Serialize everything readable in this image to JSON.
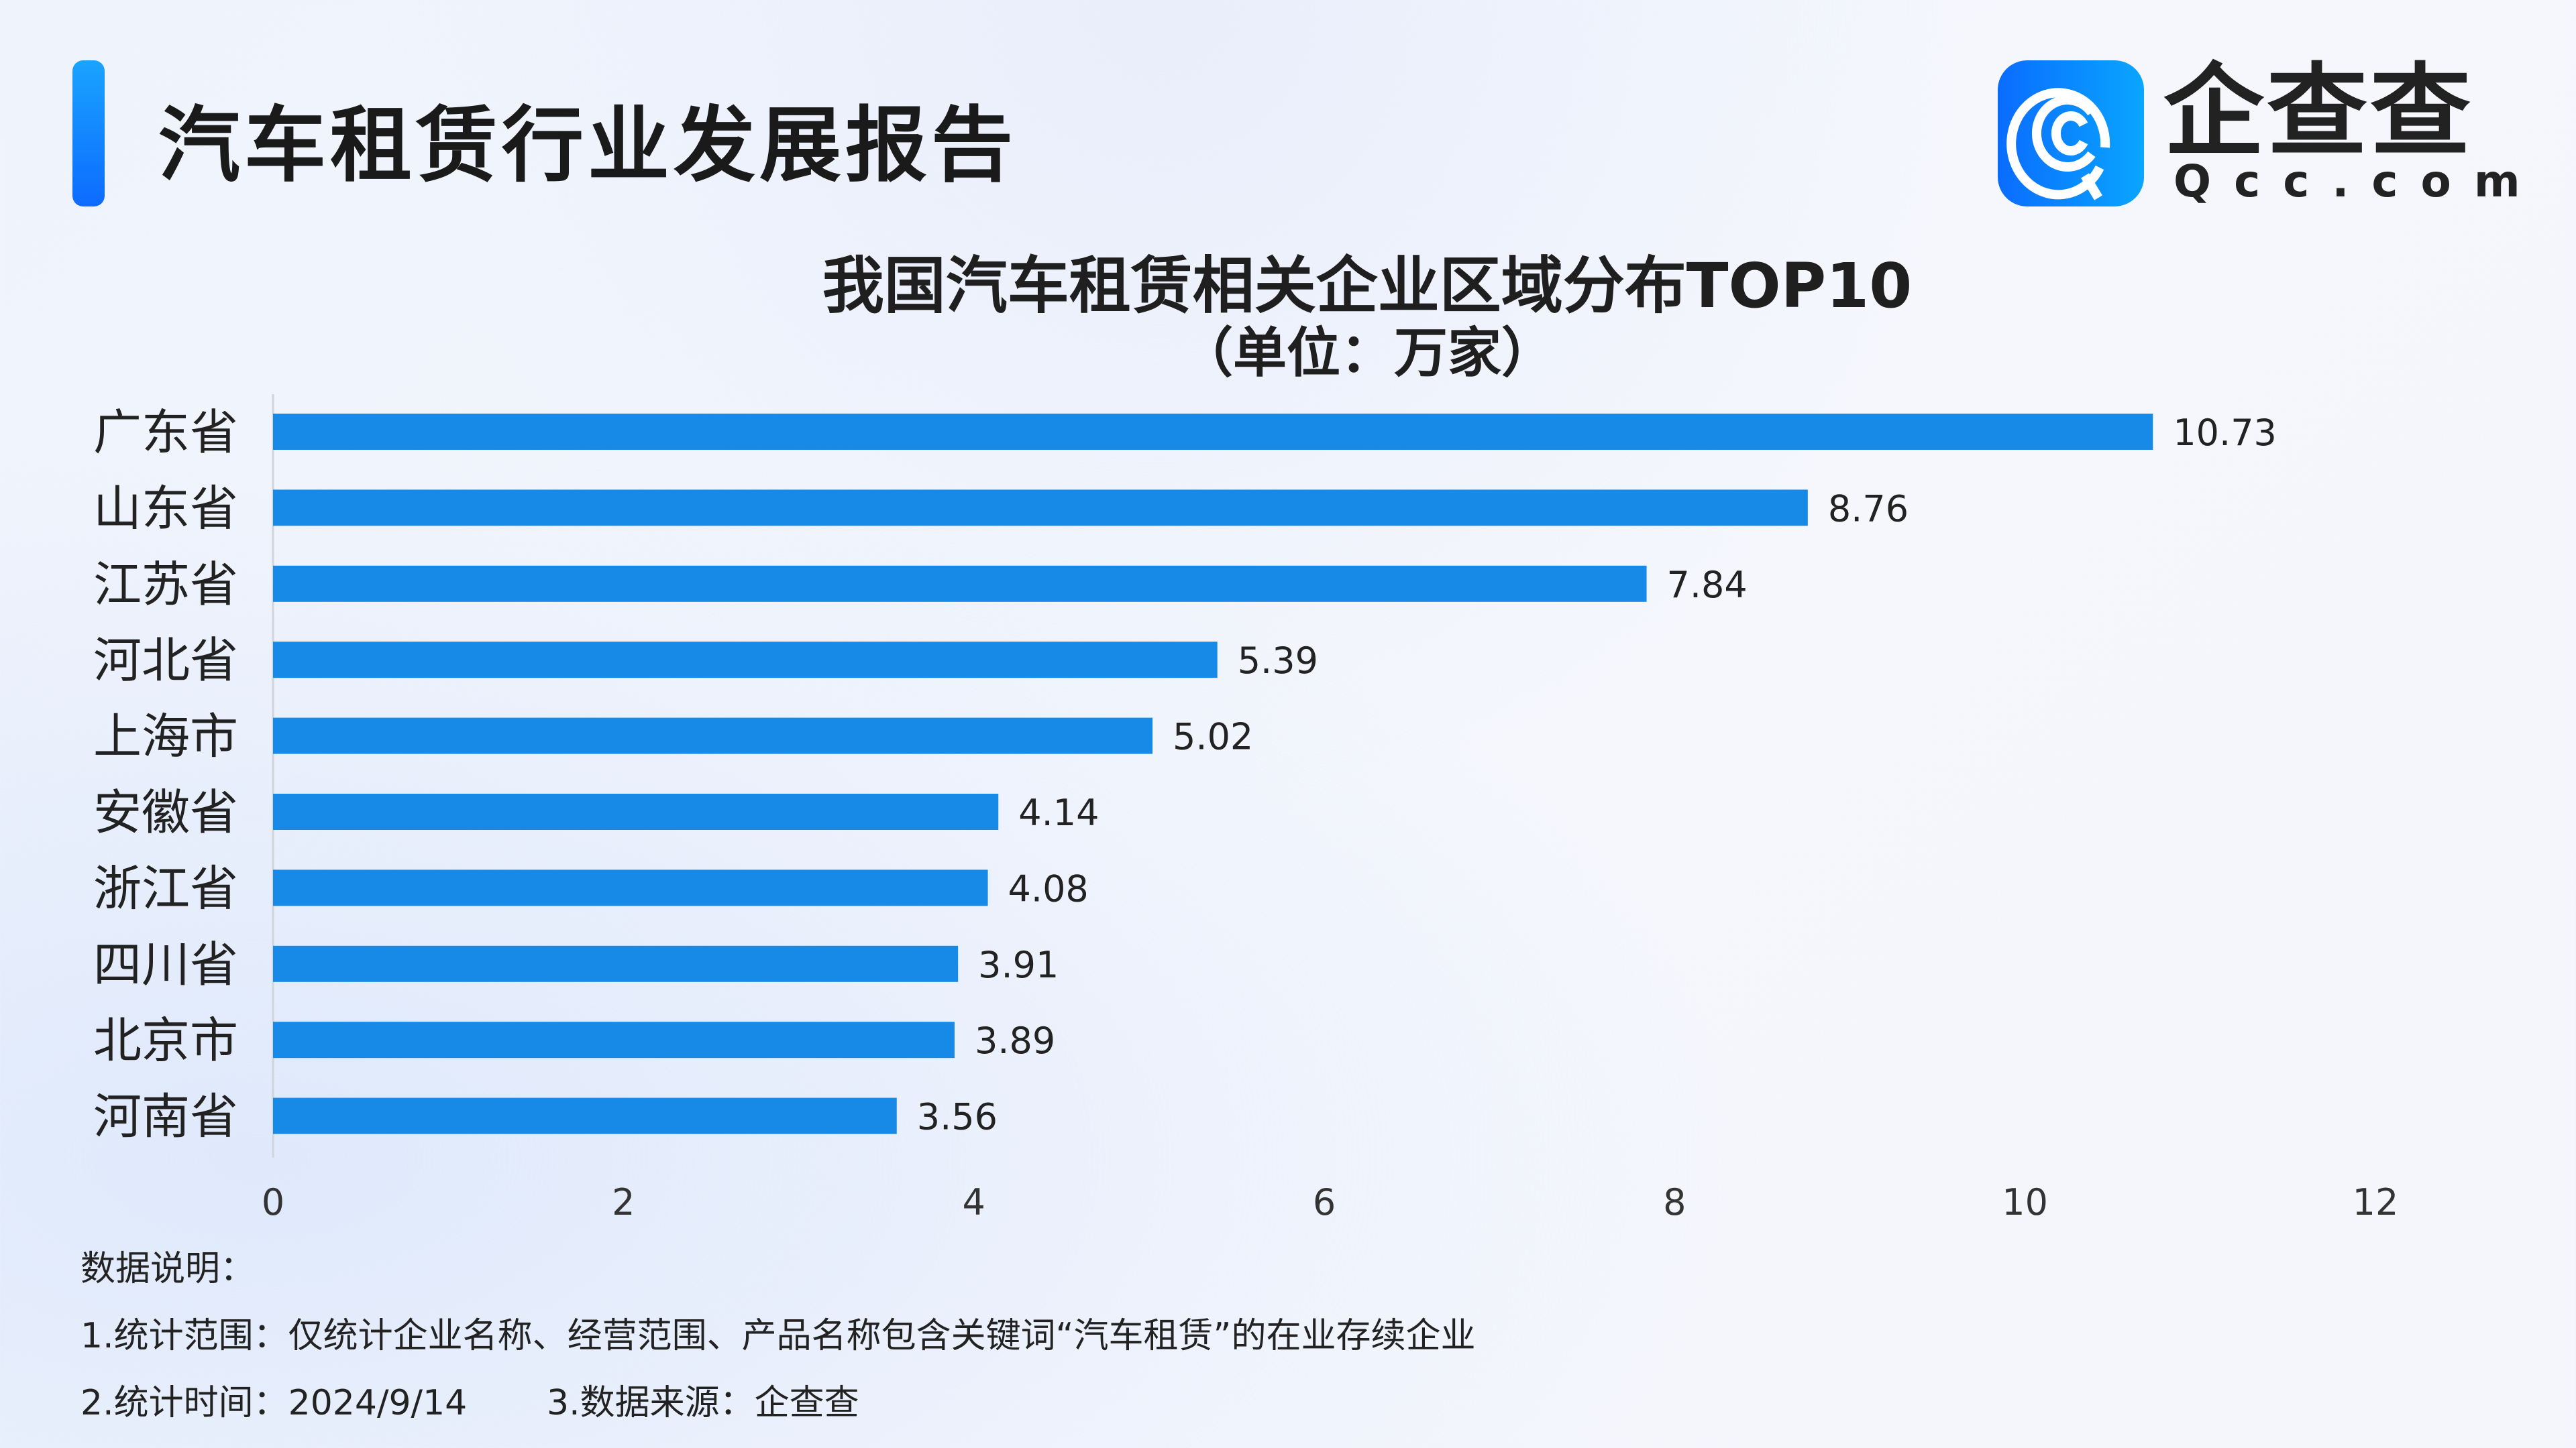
{
  "header": {
    "title": "汽车租赁行业发展报告",
    "accent_color": "#1a8cff"
  },
  "logo": {
    "brand": "企查查",
    "domain": "Qcc.com"
  },
  "chart_data": {
    "type": "bar",
    "orientation": "horizontal",
    "title": "我国汽车租赁相关企业区域分布TOP10",
    "subtitle": "（单位：万家）",
    "categories": [
      "广东省",
      "山东省",
      "江苏省",
      "河北省",
      "上海市",
      "安徽省",
      "浙江省",
      "四川省",
      "北京市",
      "河南省"
    ],
    "values": [
      10.73,
      8.76,
      7.84,
      5.39,
      5.02,
      4.14,
      4.08,
      3.91,
      3.89,
      3.56
    ],
    "value_labels": [
      "10.73",
      "8.76",
      "7.84",
      "5.39",
      "5.02",
      "4.14",
      "4.08",
      "3.91",
      "3.89",
      "3.56"
    ],
    "xlim": [
      0,
      12
    ],
    "xticks": [
      "0",
      "2",
      "4",
      "6",
      "8",
      "10",
      "12"
    ],
    "grid": false,
    "bar_color": "#178ae8"
  },
  "notes": {
    "heading": "数据说明：",
    "line1": "1.统计范围：仅统计企业名称、经营范围、产品名称包含关键词“汽车租赁”的在业存续企业",
    "line2": "2.统计时间：2024/9/14",
    "line3": "3.数据来源：企查查"
  }
}
